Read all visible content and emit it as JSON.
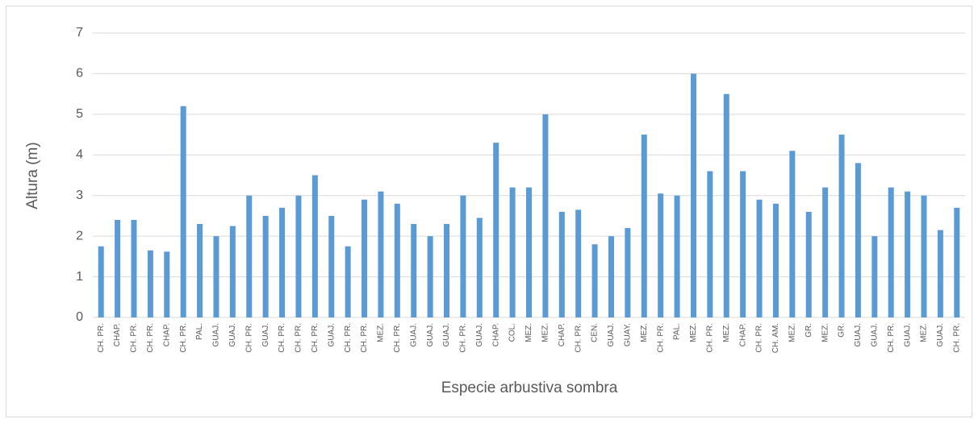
{
  "chart_data": {
    "type": "bar",
    "y_label": "Altura (m)",
    "x_label": "Especie arbustiva sombra",
    "categories": [
      "CH. PR.",
      "CHAP.",
      "CH. PR.",
      "CH. PR.",
      "CHAP.",
      "CH. PR.",
      "PAL.",
      "GUAJ.",
      "GUAJ.",
      "CH. PR.",
      "GUAJ.",
      "CH. PR.",
      "CH. PR.",
      "CH. PR.",
      "GUAJ.",
      "CH. PR.",
      "CH. PR.",
      "MEZ.",
      "CH. PR.",
      "GUAJ.",
      "GUAJ.",
      "GUAJ.",
      "CH. PR.",
      "GUAJ.",
      "CHAP.",
      "COL.",
      "MEZ.",
      "MEZ.",
      "CHAP.",
      "CH. PR.",
      "CEN.",
      "GUAJ.",
      "GUAY.",
      "MEZ.",
      "CH. PR.",
      "PAL.",
      "MEZ.",
      "CH. PR.",
      "MEZ.",
      "CHAP.",
      "CH. PR.",
      "CH. AM.",
      "MEZ.",
      "GR.",
      "MEZ.",
      "GR.",
      "GUAJ.",
      "GUAJ.",
      "CH. PR.",
      "GUAJ.",
      "MEZ.",
      "GUAJ.",
      "CH. PR."
    ],
    "values": [
      1.75,
      2.4,
      2.4,
      1.65,
      1.62,
      5.2,
      2.3,
      2.0,
      2.25,
      3.0,
      2.5,
      2.7,
      3.0,
      3.5,
      2.5,
      1.75,
      2.9,
      3.1,
      2.8,
      2.3,
      2.0,
      2.3,
      3.0,
      2.45,
      4.3,
      3.2,
      3.2,
      5.0,
      2.6,
      2.65,
      1.8,
      2.0,
      2.2,
      4.5,
      3.05,
      3.0,
      6.0,
      3.6,
      5.5,
      3.6,
      2.9,
      2.8,
      4.1,
      2.6,
      3.2,
      4.5,
      3.8,
      2.0,
      3.2,
      3.1,
      3.0,
      2.15,
      2.7
    ],
    "color": "#5b9bd5",
    "ylim": [
      0,
      7
    ],
    "yticks": [
      0,
      1,
      2,
      3,
      4,
      5,
      6,
      7
    ],
    "grid": true
  }
}
